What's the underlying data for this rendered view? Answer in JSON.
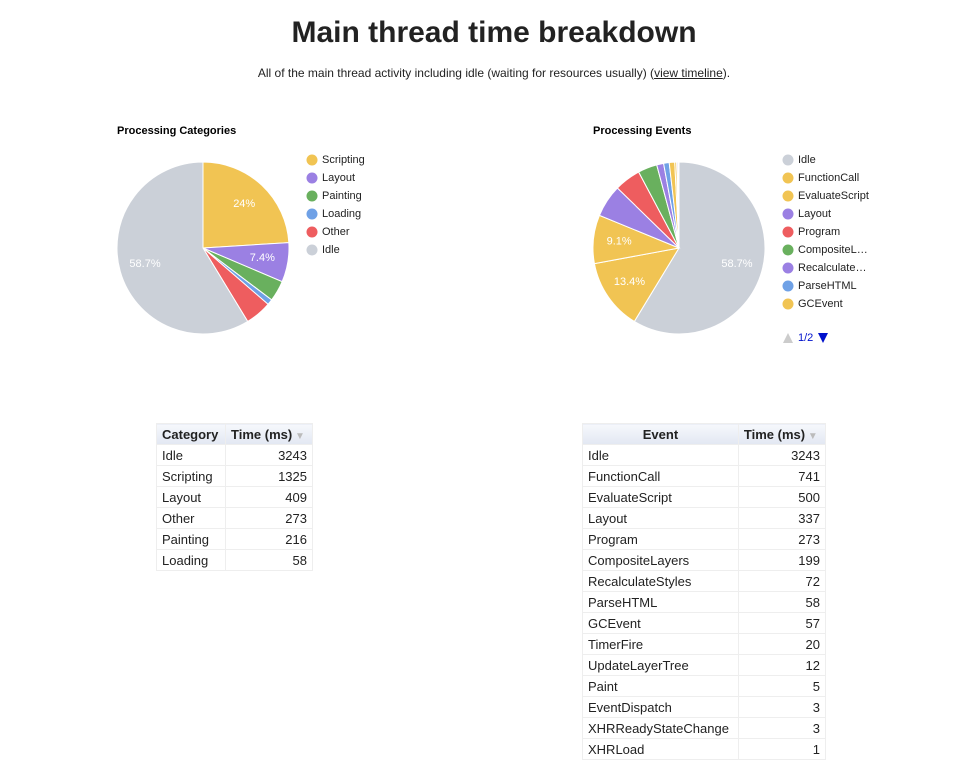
{
  "header": {
    "title": "Main thread time breakdown",
    "subtitle": "All of the main thread activity including idle (waiting for resources usually) (",
    "link": "view timeline",
    "subtitle_end": ")."
  },
  "chart_data": [
    {
      "type": "pie",
      "title": "Processing Categories",
      "categories": [
        "Scripting",
        "Layout",
        "Painting",
        "Loading",
        "Other",
        "Idle"
      ],
      "values": [
        24,
        7.4,
        3.9,
        1.05,
        4.94,
        58.7
      ],
      "value_labels": [
        "24%",
        "7.4%",
        null,
        null,
        null,
        "58.7%"
      ],
      "colors": [
        "#f1c453",
        "#9b80e3",
        "#69b05e",
        "#6fa1e6",
        "#ee5d5f",
        "#cbd0d8"
      ]
    },
    {
      "type": "pie",
      "title": "Processing Events",
      "categories": [
        "Idle",
        "FunctionCall",
        "EvaluateScript",
        "Layout",
        "Program",
        "CompositeL…",
        "Recalculate…",
        "ParseHTML",
        "GCEvent",
        null,
        null,
        null,
        null,
        null,
        null
      ],
      "values": [
        58.7,
        13.4,
        9.1,
        6.1,
        4.94,
        3.6,
        1.3,
        1.05,
        1.03,
        0.36,
        0.22,
        0.09,
        0.05,
        0.05,
        0.02
      ],
      "value_labels": [
        "58.7%",
        "13.4%",
        "9.1%",
        null,
        null,
        null,
        null,
        null,
        null,
        null,
        null,
        null,
        null,
        null,
        null
      ],
      "colors": [
        "#cbd0d8",
        "#f1c453",
        "#f1c453",
        "#9b80e3",
        "#ee5d5f",
        "#69b05e",
        "#9b80e3",
        "#6fa1e6",
        "#f1c453",
        "#f1c453",
        "#9b80e3",
        "#69b05e",
        "#ee5d5f",
        "#6fa1e6",
        "#f1c453"
      ],
      "legend_page": "1/2"
    }
  ],
  "tables": [
    {
      "columns": [
        "Category",
        "Time (ms)"
      ],
      "rows": [
        [
          "Idle",
          3243
        ],
        [
          "Scripting",
          1325
        ],
        [
          "Layout",
          409
        ],
        [
          "Other",
          273
        ],
        [
          "Painting",
          216
        ],
        [
          "Loading",
          58
        ]
      ]
    },
    {
      "columns": [
        "Event",
        "Time (ms)"
      ],
      "rows": [
        [
          "Idle",
          3243
        ],
        [
          "FunctionCall",
          741
        ],
        [
          "EvaluateScript",
          500
        ],
        [
          "Layout",
          337
        ],
        [
          "Program",
          273
        ],
        [
          "CompositeLayers",
          199
        ],
        [
          "RecalculateStyles",
          72
        ],
        [
          "ParseHTML",
          58
        ],
        [
          "GCEvent",
          57
        ],
        [
          "TimerFire",
          20
        ],
        [
          "UpdateLayerTree",
          12
        ],
        [
          "Paint",
          5
        ],
        [
          "EventDispatch",
          3
        ],
        [
          "XHRReadyStateChange",
          3
        ],
        [
          "XHRLoad",
          1
        ]
      ]
    }
  ]
}
